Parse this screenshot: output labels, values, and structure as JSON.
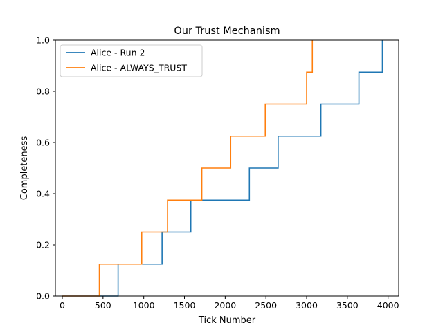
{
  "chart_data": {
    "type": "line",
    "title": "Our Trust Mechanism",
    "xlabel": "Tick Number",
    "ylabel": "Completeness",
    "xlim": [
      -85,
      4130
    ],
    "ylim": [
      0,
      1.0
    ],
    "xticks": [
      0,
      500,
      1000,
      1500,
      2000,
      2500,
      3000,
      3500,
      4000
    ],
    "yticks": [
      0.0,
      0.2,
      0.4,
      0.6,
      0.8,
      1.0
    ],
    "xtick_labels": [
      "0",
      "500",
      "1000",
      "1500",
      "2000",
      "2500",
      "3000",
      "3500",
      "4000"
    ],
    "ytick_labels": [
      "0.0",
      "0.2",
      "0.4",
      "0.6",
      "0.8",
      "1.0"
    ],
    "grid": false,
    "legend_position": "top-left",
    "step": "post",
    "series": [
      {
        "name": "Alice - Run 2",
        "color": "#1f77b4",
        "x": [
          0,
          685,
          1225,
          1578,
          2297,
          2650,
          3175,
          3642,
          3930
        ],
        "y": [
          0.0,
          0.125,
          0.25,
          0.375,
          0.5,
          0.625,
          0.75,
          0.875,
          1.0
        ]
      },
      {
        "name": "Alice - ALWAYS_TRUST",
        "color": "#ff7f0e",
        "x": [
          0,
          455,
          975,
          1292,
          1713,
          2067,
          2492,
          3000,
          3070
        ],
        "y": [
          0.0,
          0.125,
          0.25,
          0.375,
          0.5,
          0.625,
          0.75,
          0.875,
          1.0
        ]
      }
    ]
  }
}
